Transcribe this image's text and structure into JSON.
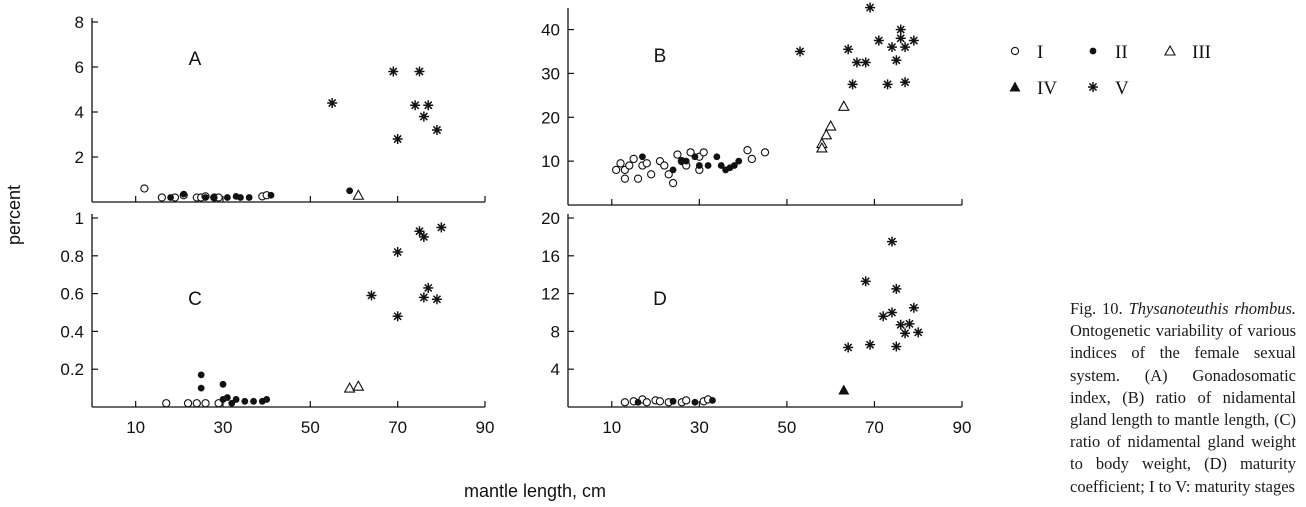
{
  "shared": {
    "ylabel": "percent",
    "xlabel": "mantle length, cm",
    "xticks": [
      10,
      30,
      50,
      70,
      90
    ],
    "xlim": [
      0,
      90
    ]
  },
  "legend": {
    "items": [
      {
        "marker": "open-circle",
        "label": "I"
      },
      {
        "marker": "filled-circle",
        "label": "II"
      },
      {
        "marker": "open-triangle",
        "label": "III"
      },
      {
        "marker": "filled-triangle",
        "label": "IV"
      },
      {
        "marker": "asterisk",
        "label": "V"
      }
    ]
  },
  "caption": {
    "fig": "Fig. 10.",
    "species": "Thysanoteuthis rhombus.",
    "text": "Ontogenetic variability of various indices of the female sexual system. (A) Gonadosomatic index, (B) ratio of nidamental gland length to mantle length, (C) ratio of nidamental gland weight to body weight, (D) maturity coefficient; I to V: maturity stages"
  },
  "chart_data": [
    {
      "type": "scatter",
      "panel_label": "A",
      "xlim": [
        0,
        90
      ],
      "ylim": [
        0,
        8
      ],
      "yticks": [
        2,
        4,
        6,
        8
      ],
      "series": [
        {
          "name": "I",
          "marker": "open-circle",
          "points": [
            [
              12,
              0.6
            ],
            [
              16,
              0.2
            ],
            [
              19,
              0.2
            ],
            [
              21,
              0.3
            ],
            [
              24,
              0.2
            ],
            [
              25,
              0.2
            ],
            [
              26,
              0.25
            ],
            [
              28,
              0.2
            ],
            [
              29,
              0.2
            ],
            [
              39,
              0.25
            ],
            [
              40,
              0.3
            ]
          ]
        },
        {
          "name": "II",
          "marker": "filled-circle",
          "points": [
            [
              18,
              0.2
            ],
            [
              21,
              0.35
            ],
            [
              26,
              0.2
            ],
            [
              28,
              0.2
            ],
            [
              31,
              0.2
            ],
            [
              33,
              0.25
            ],
            [
              34,
              0.2
            ],
            [
              36,
              0.2
            ],
            [
              41,
              0.3
            ],
            [
              59,
              0.5
            ]
          ]
        },
        {
          "name": "III",
          "marker": "open-triangle",
          "points": [
            [
              61,
              0.3
            ]
          ]
        },
        {
          "name": "V",
          "marker": "asterisk",
          "points": [
            [
              55,
              4.4
            ],
            [
              69,
              5.8
            ],
            [
              70,
              2.8
            ],
            [
              74,
              4.3
            ],
            [
              75,
              5.8
            ],
            [
              76,
              3.8
            ],
            [
              77,
              4.3
            ],
            [
              79,
              3.2
            ]
          ]
        }
      ]
    },
    {
      "type": "scatter",
      "panel_label": "B",
      "xlim": [
        0,
        90
      ],
      "ylim": [
        0,
        44
      ],
      "yticks": [
        10,
        20,
        30,
        40
      ],
      "series": [
        {
          "name": "I",
          "marker": "open-circle",
          "points": [
            [
              11,
              8
            ],
            [
              12,
              9.5
            ],
            [
              13,
              6
            ],
            [
              13,
              8
            ],
            [
              14,
              9
            ],
            [
              15,
              10.5
            ],
            [
              16,
              6
            ],
            [
              17,
              9
            ],
            [
              18,
              9.5
            ],
            [
              19,
              7
            ],
            [
              21,
              10
            ],
            [
              22,
              9
            ],
            [
              23,
              7
            ],
            [
              24,
              5
            ],
            [
              25,
              11.5
            ],
            [
              26,
              10
            ],
            [
              27,
              9
            ],
            [
              28,
              12
            ],
            [
              30,
              8
            ],
            [
              30,
              11
            ],
            [
              31,
              12
            ],
            [
              41,
              12.5
            ],
            [
              42,
              10.5
            ],
            [
              45,
              12
            ]
          ]
        },
        {
          "name": "II",
          "marker": "filled-circle",
          "points": [
            [
              17,
              11
            ],
            [
              24,
              8
            ],
            [
              26,
              10
            ],
            [
              27,
              10
            ],
            [
              29,
              11
            ],
            [
              30,
              9
            ],
            [
              32,
              9
            ],
            [
              34,
              11
            ],
            [
              35,
              9
            ],
            [
              36,
              8
            ],
            [
              37,
              8.5
            ],
            [
              38,
              9
            ],
            [
              39,
              10
            ]
          ]
        },
        {
          "name": "III",
          "marker": "open-triangle",
          "points": [
            [
              58,
              14
            ],
            [
              58,
              13
            ],
            [
              59,
              16
            ],
            [
              60,
              18
            ],
            [
              63,
              22.5
            ]
          ]
        },
        {
          "name": "V",
          "marker": "asterisk",
          "points": [
            [
              53,
              35
            ],
            [
              64,
              35.5
            ],
            [
              65,
              27.5
            ],
            [
              66,
              32.5
            ],
            [
              68,
              32.5
            ],
            [
              69,
              45
            ],
            [
              71,
              37.5
            ],
            [
              73,
              27.5
            ],
            [
              74,
              36
            ],
            [
              75,
              33
            ],
            [
              76,
              38
            ],
            [
              76,
              40
            ],
            [
              77,
              36
            ],
            [
              77,
              28
            ],
            [
              79,
              37.5
            ]
          ]
        }
      ]
    },
    {
      "type": "scatter",
      "panel_label": "C",
      "xlim": [
        0,
        90
      ],
      "ylim": [
        0,
        1.0
      ],
      "yticks": [
        0.2,
        0.4,
        0.6,
        0.8,
        1.0
      ],
      "series": [
        {
          "name": "I",
          "marker": "open-circle",
          "points": [
            [
              17,
              0.02
            ],
            [
              22,
              0.02
            ],
            [
              24,
              0.02
            ],
            [
              26,
              0.02
            ],
            [
              29,
              0.02
            ]
          ]
        },
        {
          "name": "II",
          "marker": "filled-circle",
          "points": [
            [
              25,
              0.17
            ],
            [
              25,
              0.1
            ],
            [
              30,
              0.12
            ],
            [
              30,
              0.04
            ],
            [
              31,
              0.05
            ],
            [
              32,
              0.02
            ],
            [
              33,
              0.04
            ],
            [
              35,
              0.03
            ],
            [
              37,
              0.03
            ],
            [
              39,
              0.03
            ],
            [
              40,
              0.04
            ]
          ]
        },
        {
          "name": "III",
          "marker": "open-triangle",
          "points": [
            [
              59,
              0.1
            ],
            [
              61,
              0.11
            ]
          ]
        },
        {
          "name": "V",
          "marker": "asterisk",
          "points": [
            [
              64,
              0.59
            ],
            [
              70,
              0.82
            ],
            [
              70,
              0.48
            ],
            [
              75,
              0.93
            ],
            [
              76,
              0.58
            ],
            [
              76,
              0.9
            ],
            [
              77,
              0.63
            ],
            [
              79,
              0.57
            ],
            [
              80,
              0.95
            ]
          ]
        }
      ]
    },
    {
      "type": "scatter",
      "panel_label": "D",
      "xlim": [
        0,
        90
      ],
      "ylim": [
        0,
        20
      ],
      "yticks": [
        4,
        8,
        12,
        16,
        20
      ],
      "series": [
        {
          "name": "I",
          "marker": "open-circle",
          "points": [
            [
              13,
              0.5
            ],
            [
              15,
              0.6
            ],
            [
              17,
              0.8
            ],
            [
              18,
              0.5
            ],
            [
              20,
              0.7
            ],
            [
              21,
              0.6
            ],
            [
              23,
              0.5
            ],
            [
              26,
              0.5
            ],
            [
              27,
              0.7
            ],
            [
              31,
              0.6
            ],
            [
              32,
              0.8
            ]
          ]
        },
        {
          "name": "II",
          "marker": "filled-circle",
          "points": [
            [
              16,
              0.5
            ],
            [
              24,
              0.6
            ],
            [
              29,
              0.5
            ],
            [
              33,
              0.7
            ]
          ]
        },
        {
          "name": "IV",
          "marker": "filled-triangle",
          "points": [
            [
              63,
              1.8
            ]
          ]
        },
        {
          "name": "V",
          "marker": "asterisk",
          "points": [
            [
              64,
              6.3
            ],
            [
              68,
              13.3
            ],
            [
              69,
              6.6
            ],
            [
              72,
              9.6
            ],
            [
              74,
              17.5
            ],
            [
              74,
              10
            ],
            [
              75,
              6.4
            ],
            [
              75,
              12.5
            ],
            [
              76,
              8.7
            ],
            [
              77,
              7.8
            ],
            [
              78,
              8.8
            ],
            [
              79,
              10.5
            ],
            [
              80,
              7.9
            ]
          ]
        }
      ]
    }
  ]
}
